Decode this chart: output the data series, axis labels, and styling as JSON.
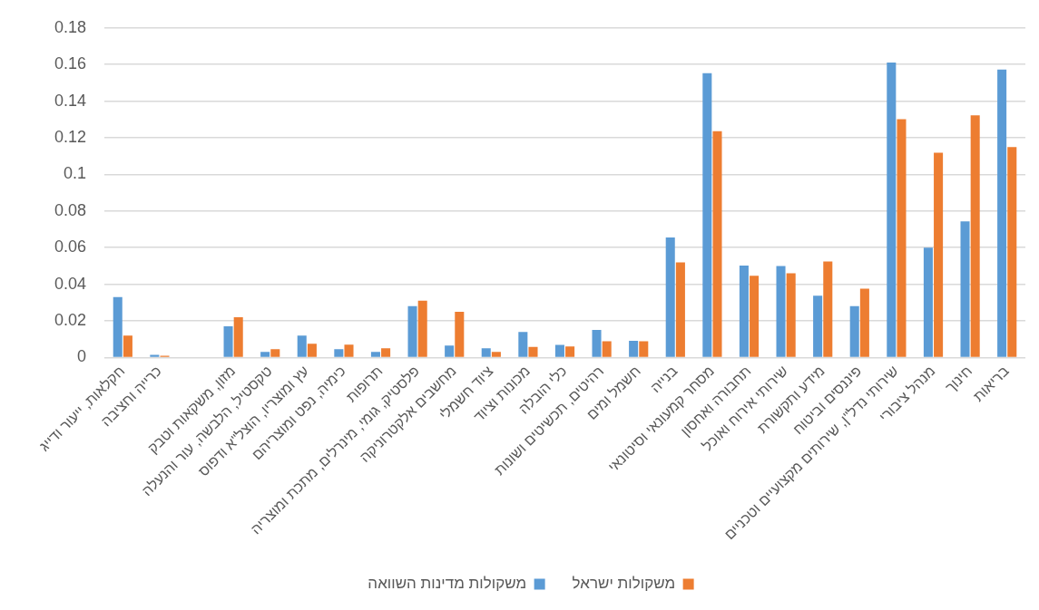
{
  "chart_data": {
    "type": "bar",
    "categories": [
      "חקלאות, ייעור ודייג",
      "כרייה וחציבה",
      null,
      "מזון, משקאות וטבק",
      "טקסטיל, הלבשה, עור והנעלה",
      "עץ ומוצריו, הוצל\"א ודפוס",
      "כימיה, נפט ומוצריהם",
      "תרופות",
      "פלסטיק, גומי, מינרלים, מתכת ומוצריה",
      "מחשבים אלקטרוניקה",
      "ציוד חשמלי",
      "מכונות וציוד",
      "כלי הובלה",
      "רהיטים, תכשיטים ושונות",
      "חשמל ומים",
      "בנייה",
      "מסחר קמעונאי וסיטונאי",
      "תחבורה ואחסון",
      "שירותי אירוח ואוכל",
      "מידע ותקשורת",
      "פיננסים וביטוח",
      "שירותי נדל\"ן, שירותים מקצועיים וטכניים",
      "מנהל ציבורי",
      "חינוך",
      "בריאות"
    ],
    "series": [
      {
        "name": "משקולות מדינות השוואה",
        "color": "#5b9bd5",
        "values": [
          0.033,
          0.0015,
          null,
          0.017,
          0.003,
          0.012,
          0.0045,
          0.003,
          0.028,
          0.0065,
          0.005,
          0.014,
          0.0069,
          0.0151,
          0.0091,
          0.0656,
          0.1553,
          0.0502,
          0.05,
          0.0338,
          0.028,
          0.1611,
          0.06,
          0.0744,
          0.1573
        ]
      },
      {
        "name": "משקולות ישראל",
        "color": "#ed7d31",
        "values": [
          0.012,
          0.001,
          null,
          0.022,
          0.0045,
          0.0075,
          0.007,
          0.005,
          0.031,
          0.025,
          0.003,
          0.0058,
          0.006,
          0.0089,
          0.0089,
          0.052,
          0.1236,
          0.0447,
          0.046,
          0.0524,
          0.0376,
          0.1302,
          0.1118,
          0.1322,
          0.1149
        ]
      }
    ],
    "ylim": [
      0,
      0.18
    ],
    "yticks": [
      0,
      0.02,
      0.04,
      0.06,
      0.08,
      0.1,
      0.12,
      0.14,
      0.16,
      0.18
    ],
    "grid": "y",
    "legend": "bottom"
  }
}
